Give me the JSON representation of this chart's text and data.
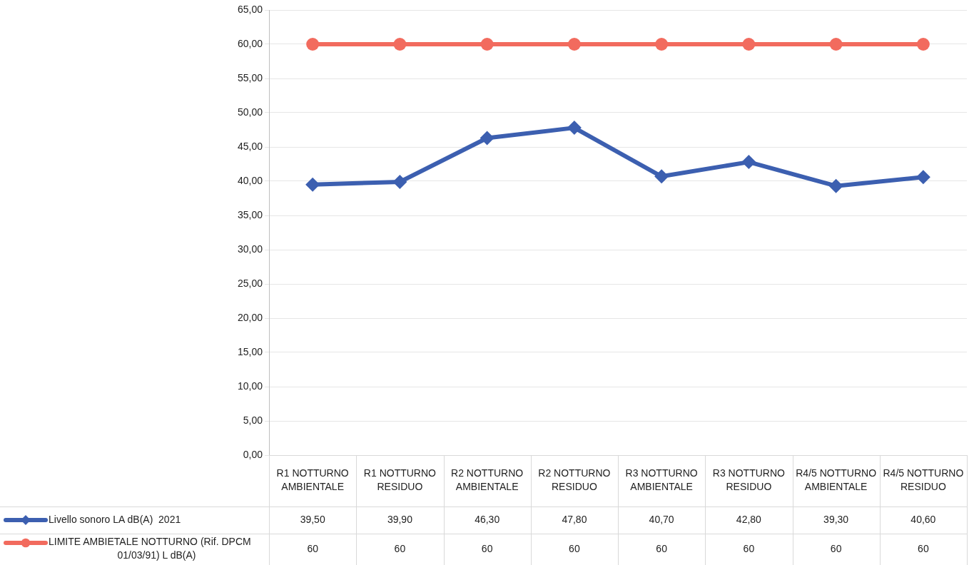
{
  "chart_data": {
    "type": "line",
    "categories": [
      "R1 NOTTURNO AMBIENTALE",
      "R1 NOTTURNO RESIDUO",
      "R2 NOTTURNO AMBIENTALE",
      "R2 NOTTURNO RESIDUO",
      "R3 NOTTURNO AMBIENTALE",
      "R3 NOTTURNO RESIDUO",
      "R4/5 NOTTURNO AMBIENTALE",
      "R4/5 NOTTURNO RESIDUO"
    ],
    "series": [
      {
        "name": "Livello sonoro LA dB(A)  2021",
        "color": "#3c5fb0",
        "marker": "diamond",
        "values": [
          39.5,
          39.9,
          46.3,
          47.8,
          40.7,
          42.8,
          39.3,
          40.6
        ],
        "value_labels": [
          "39,50",
          "39,90",
          "46,30",
          "47,80",
          "40,70",
          "42,80",
          "39,30",
          "40,60"
        ]
      },
      {
        "name": "LIMITE AMBIETALE NOTTURNO (Rif. DPCM 01/03/91) L dB(A)",
        "color": "#f26b5e",
        "marker": "circle",
        "values": [
          60,
          60,
          60,
          60,
          60,
          60,
          60,
          60
        ],
        "value_labels": [
          "60",
          "60",
          "60",
          "60",
          "60",
          "60",
          "60",
          "60"
        ]
      }
    ],
    "ylim": [
      0,
      65
    ],
    "yticks": [
      {
        "value": 0,
        "label": "0,00"
      },
      {
        "value": 5,
        "label": "5,00"
      },
      {
        "value": 10,
        "label": "10,00"
      },
      {
        "value": 15,
        "label": "15,00"
      },
      {
        "value": 20,
        "label": "20,00"
      },
      {
        "value": 25,
        "label": "25,00"
      },
      {
        "value": 30,
        "label": "30,00"
      },
      {
        "value": 35,
        "label": "35,00"
      },
      {
        "value": 40,
        "label": "40,00"
      },
      {
        "value": 45,
        "label": "45,00"
      },
      {
        "value": 50,
        "label": "50,00"
      },
      {
        "value": 55,
        "label": "55,00"
      },
      {
        "value": 60,
        "label": "60,00"
      },
      {
        "value": 65,
        "label": "65,00"
      }
    ],
    "grid": "y",
    "legend": "bottom left",
    "line_style": "solid"
  }
}
